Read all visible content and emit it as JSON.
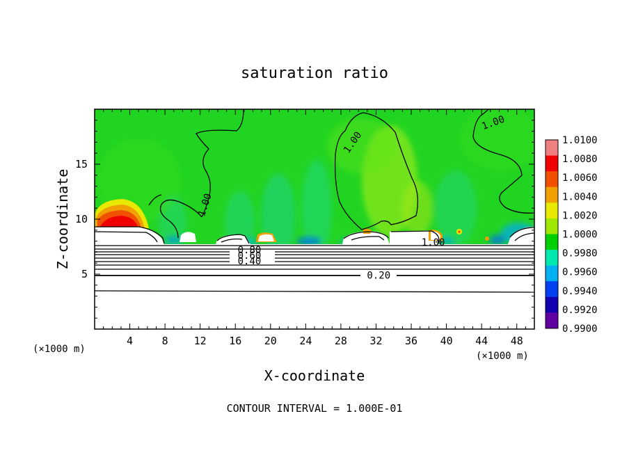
{
  "chart_data": {
    "type": "heatmap",
    "title": "saturation ratio",
    "xlabel": "X-coordinate",
    "ylabel": "Z-coordinate",
    "x_unit_left": "(×1000 m)",
    "x_unit_right": "(×1000 m)",
    "xlim": [
      0,
      50
    ],
    "ylim": [
      0,
      20
    ],
    "x_ticks": [
      "4",
      "8",
      "12",
      "16",
      "20",
      "24",
      "28",
      "32",
      "36",
      "40",
      "44",
      "48"
    ],
    "y_ticks": [
      "5",
      "10",
      "15"
    ],
    "grid": false,
    "colorbar": {
      "labels": [
        "1.0100",
        "1.0080",
        "1.0060",
        "1.0040",
        "1.0020",
        "1.0000",
        "0.9980",
        "0.9960",
        "0.9940",
        "0.9920",
        "0.9900"
      ],
      "colors": [
        "#f08080",
        "#f00000",
        "#f05000",
        "#f0a000",
        "#e8e800",
        "#a0e800",
        "#00d000",
        "#00e8b0",
        "#00b0f0",
        "#0040f0",
        "#1000b0",
        "#6000a0"
      ]
    },
    "contour_labels": [
      {
        "text": "1.00",
        "x": 12.5,
        "z": 11.3
      },
      {
        "text": "1.00",
        "x": 29.3,
        "z": 17.0
      },
      {
        "text": "1.00",
        "x": 45.3,
        "z": 18.8
      },
      {
        "text": "1.00",
        "x": 38.5,
        "z": 7.9
      },
      {
        "text": "0.80",
        "x": 17.6,
        "z": 7.2
      },
      {
        "text": "0.60",
        "x": 17.6,
        "z": 6.7
      },
      {
        "text": "0.40",
        "x": 17.6,
        "z": 6.2
      },
      {
        "text": "0.20",
        "x": 32.3,
        "z": 4.9
      }
    ],
    "contour_interval_text": "CONTOUR INTERVAL = 1.000E-01"
  }
}
